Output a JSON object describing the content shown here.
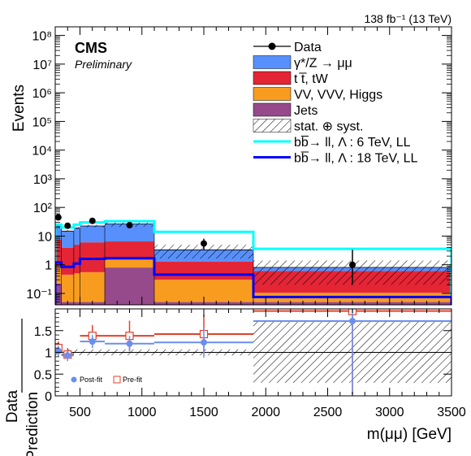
{
  "header": {
    "lumi": "138 fb⁻¹ (13 TeV)",
    "cms": "CMS",
    "preliminary": "Preliminary"
  },
  "top_panel": {
    "ylabel": "Events",
    "yticks": [
      "10⁻¹",
      "1",
      "10",
      "10²",
      "10³",
      "10⁴",
      "10⁵",
      "10⁶",
      "10⁷",
      "10⁸"
    ]
  },
  "bottom_panel": {
    "ylabel_line1": "Data",
    "ylabel_line2": "Prediction",
    "yticks": [
      "0",
      "0.5",
      "1",
      "1.5"
    ],
    "legend": {
      "postfit": "Post-fit",
      "prefit": "Pre-fit"
    }
  },
  "xaxis": {
    "label": "m(μμ) [GeV]",
    "ticks": [
      "500",
      "1000",
      "1500",
      "2000",
      "2500",
      "3000",
      "3500"
    ]
  },
  "legend": [
    {
      "key": "data",
      "label": "Data",
      "style": "marker",
      "color": "#000000"
    },
    {
      "key": "dy",
      "label": "γ*/Z → μμ",
      "style": "fill",
      "color": "#5790fc"
    },
    {
      "key": "tt",
      "label": "t t̅, tW",
      "style": "fill",
      "color": "#e42536"
    },
    {
      "key": "vv",
      "label": "VV, VVV, Higgs",
      "style": "fill",
      "color": "#f89c20"
    },
    {
      "key": "jets",
      "label": "Jets",
      "style": "fill",
      "color": "#964a8b"
    },
    {
      "key": "unc",
      "label": "stat. ⊕ syst.",
      "style": "hatch",
      "color": "#000000"
    },
    {
      "key": "sig6",
      "label": "bb̅→ ll, Λ : 6 TeV, LL",
      "style": "line",
      "color": "#00ffff"
    },
    {
      "key": "sig18",
      "label": "bb̅→ ll, Λ : 18 TeV, LL",
      "style": "line",
      "color": "#0000ff"
    }
  ],
  "chart_data": {
    "type": "bar",
    "xlabel": "m(μμ) [GeV]",
    "ylabel": "Events",
    "xlim": [
      300,
      3500
    ],
    "ylim": [
      0.04,
      200000000
    ],
    "yscale": "log",
    "bin_edges": [
      300,
      350,
      450,
      500,
      700,
      1100,
      1900,
      3500
    ],
    "stack": [
      {
        "name": "Jets",
        "color": "#964a8b",
        "values": [
          0.22,
          0.05,
          0.05,
          0.05,
          0.8,
          0.05,
          0.05
        ]
      },
      {
        "name": "VV, VVV, Higgs",
        "color": "#f89c20",
        "values": [
          0.7,
          0.4,
          0.45,
          0.5,
          0.7,
          0.25,
          0.055
        ]
      },
      {
        "name": "t t̅, tW",
        "color": "#e42536",
        "values": [
          6.5,
          3.5,
          4.5,
          5.5,
          5.0,
          1.0,
          0.5
        ]
      },
      {
        "name": "γ*/Z → μμ",
        "color": "#5790fc",
        "values": [
          15.0,
          11.0,
          14.0,
          16.5,
          20.0,
          2.0,
          0.2
        ]
      }
    ],
    "signal_lines": [
      {
        "name": "bb̅→ ll, Λ : 6 TeV, LL",
        "color": "#00ffff",
        "values": [
          25,
          20,
          25,
          30,
          33,
          14,
          3.6
        ]
      },
      {
        "name": "bb̅→ ll, Λ : 18 TeV, LL",
        "color": "#0000ff",
        "values": [
          1.2,
          0.85,
          1.1,
          1.6,
          1.7,
          0.45,
          0.075
        ]
      }
    ],
    "data": {
      "x": [
        325,
        400,
        600,
        900,
        1500,
        2700
      ],
      "y": [
        45,
        23,
        34,
        24,
        5.5,
        1.0
      ],
      "yerr_low": [
        7,
        5,
        6,
        5,
        2.2,
        0.8
      ],
      "yerr_high": [
        7,
        5,
        6,
        5,
        2.6,
        2.3
      ]
    },
    "ratio": {
      "ylim": [
        0,
        2
      ],
      "postfit": {
        "x": [
          325,
          400,
          600,
          900,
          1500,
          2700
        ],
        "xerr": [
          25,
          50,
          100,
          200,
          400,
          800
        ],
        "y": [
          1.03,
          0.93,
          1.25,
          1.2,
          1.23,
          1.72
        ],
        "yerr": [
          0.12,
          0.12,
          0.15,
          0.18,
          0.35,
          1.7
        ]
      },
      "prefit": {
        "x": [
          325,
          400,
          600,
          900,
          1500,
          2700
        ],
        "xerr": [
          25,
          50,
          100,
          200,
          400,
          800
        ],
        "y": [
          1.1,
          0.95,
          1.38,
          1.38,
          1.42,
          1.95
        ],
        "yerr": [
          0.15,
          0.15,
          0.25,
          0.35,
          0.45,
          1.9
        ]
      },
      "band": [
        {
          "x0": 300,
          "x1": 1900,
          "low": 0.93,
          "high": 1.07
        },
        {
          "x0": 1900,
          "x1": 3500,
          "low": 0.3,
          "high": 1.7
        }
      ]
    }
  }
}
